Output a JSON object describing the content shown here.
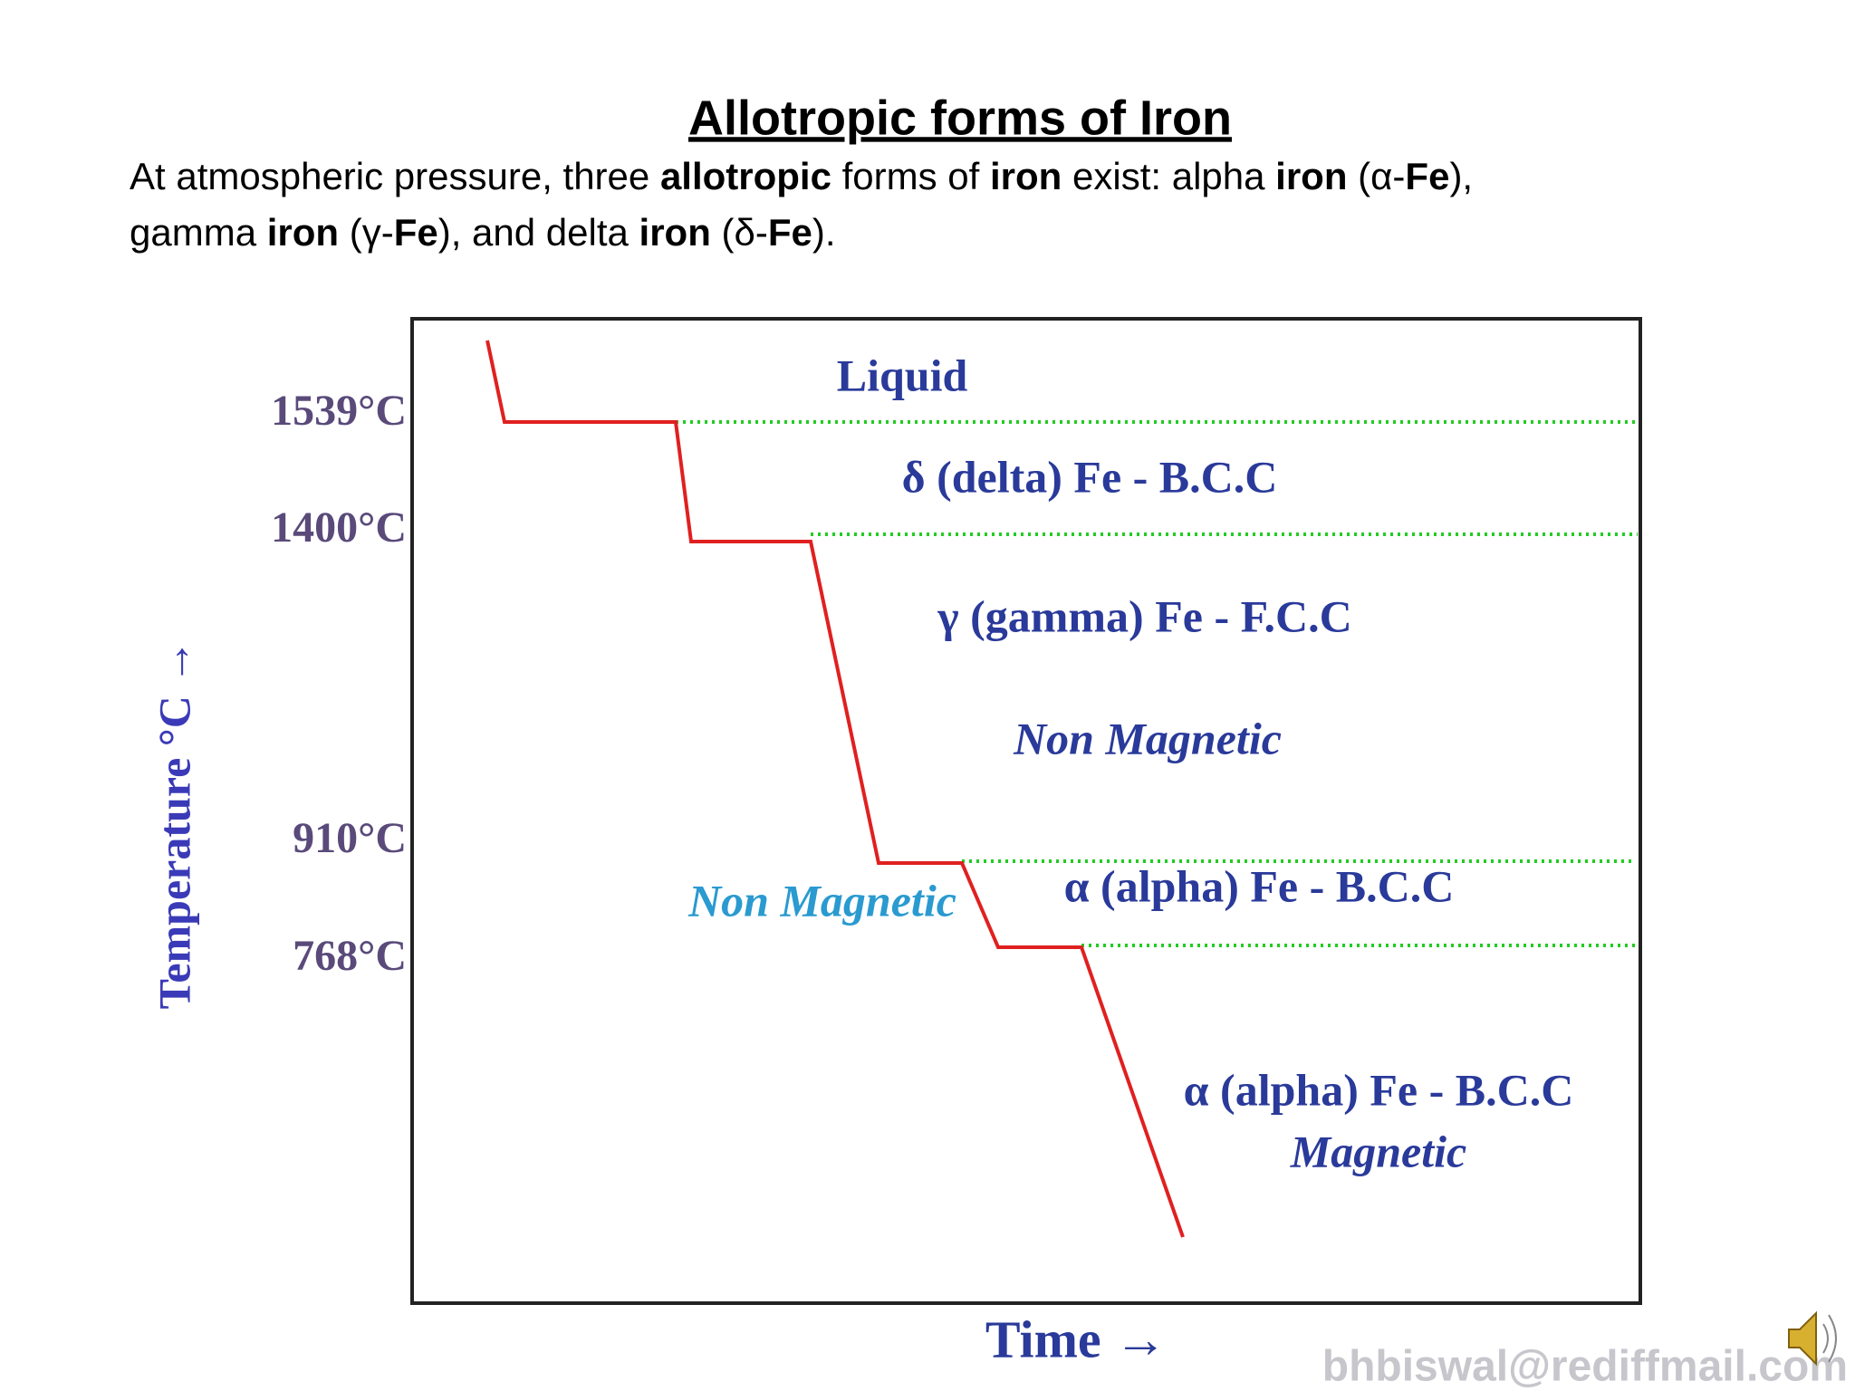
{
  "title": "Allotropic forms of Iron",
  "intro": [
    [
      {
        "text": "At atmospheric pressure, three ",
        "bold": false
      },
      {
        "text": "allotropic",
        "bold": true
      },
      {
        "text": " forms of ",
        "bold": false
      },
      {
        "text": "iron",
        "bold": true
      },
      {
        "text": " exist: alpha ",
        "bold": false
      },
      {
        "text": "iron",
        "bold": true
      },
      {
        "text": " (α-",
        "bold": false
      },
      {
        "text": "Fe",
        "bold": true
      },
      {
        "text": "),",
        "bold": false
      }
    ],
    [
      {
        "text": "gamma ",
        "bold": false
      },
      {
        "text": "iron",
        "bold": true
      },
      {
        "text": " (γ-",
        "bold": false
      },
      {
        "text": "Fe",
        "bold": true
      },
      {
        "text": "), and delta ",
        "bold": false
      },
      {
        "text": "iron",
        "bold": true
      },
      {
        "text": " (δ-",
        "bold": false
      },
      {
        "text": "Fe",
        "bold": true
      },
      {
        "text": ").",
        "bold": false
      }
    ]
  ],
  "diagram": {
    "y_axis_label": "Temperature °C →",
    "x_axis_label": "Time →",
    "temperatures": [
      "1539°C",
      "1400°C",
      "910°C",
      "768°C"
    ],
    "regions": [
      {
        "text": "Liquid",
        "italic": false
      },
      {
        "text": "δ (delta) Fe - B.C.C",
        "italic": false
      },
      {
        "text": "γ (gamma) Fe - F.C.C",
        "italic": false
      },
      {
        "text": "Non Magnetic",
        "italic": true
      },
      {
        "text": "Non Magnetic",
        "italic": true
      },
      {
        "text": "α (alpha) Fe - B.C.C",
        "italic": false
      },
      {
        "text": "α (alpha) Fe - B.C.C",
        "italic": false
      },
      {
        "text": "Magnetic",
        "italic": true
      }
    ],
    "watermark": "bhbiswal@rediffmail.com"
  }
}
